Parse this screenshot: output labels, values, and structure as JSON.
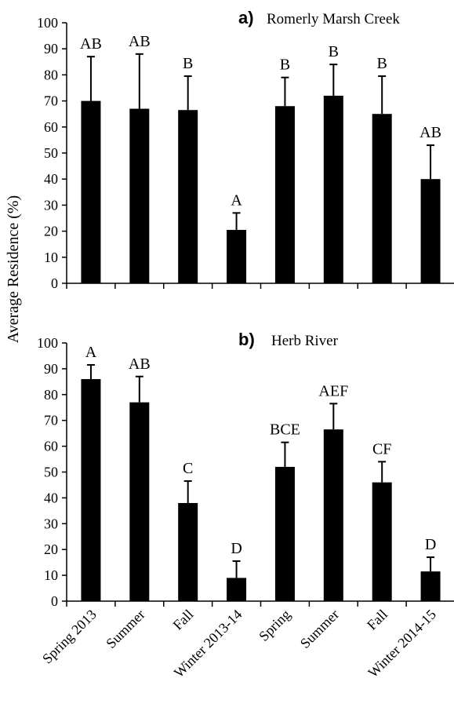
{
  "figure": {
    "ylabel": "Average Residence (%)"
  },
  "chart_data": [
    {
      "type": "bar",
      "panel_letter": "a)",
      "title": "Romerly Marsh Creek",
      "categories": [
        "Spring 2013",
        "Summer",
        "Fall",
        "Winter 2013-14",
        "Spring",
        "Summer",
        "Fall",
        "Winter 2014-15"
      ],
      "values": [
        70,
        67,
        66.5,
        20.5,
        68,
        72,
        65,
        40
      ],
      "error_upper": [
        87,
        88,
        79.5,
        27,
        79,
        84,
        79.5,
        53
      ],
      "significance_labels": [
        "AB",
        "AB",
        "B",
        "A",
        "B",
        "B",
        "B",
        "AB"
      ],
      "ylim": [
        0,
        100
      ],
      "yticks": [
        0,
        10,
        20,
        30,
        40,
        50,
        60,
        70,
        80,
        90,
        100
      ],
      "bar_color": "#000000",
      "grid": false
    },
    {
      "type": "bar",
      "panel_letter": "b)",
      "title": "Herb River",
      "categories": [
        "Spring 2013",
        "Summer",
        "Fall",
        "Winter 2013-14",
        "Spring",
        "Summer",
        "Fall",
        "Winter 2014-15"
      ],
      "values": [
        86,
        77,
        38,
        9,
        52,
        66.5,
        46,
        11.5
      ],
      "error_upper": [
        91.5,
        87,
        46.5,
        15.5,
        61.5,
        76.5,
        54,
        17
      ],
      "significance_labels": [
        "A",
        "AB",
        "C",
        "D",
        "BCE",
        "AEF",
        "CF",
        "D"
      ],
      "ylim": [
        0,
        100
      ],
      "yticks": [
        0,
        10,
        20,
        30,
        40,
        50,
        60,
        70,
        80,
        90,
        100
      ],
      "bar_color": "#000000",
      "grid": false
    }
  ]
}
